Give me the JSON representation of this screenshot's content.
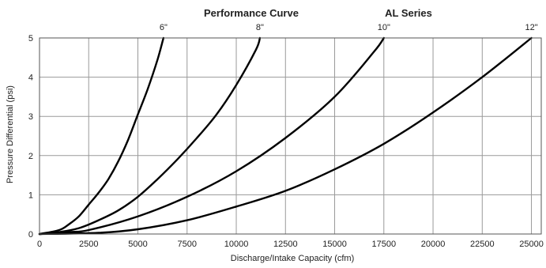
{
  "chart_data": {
    "type": "line",
    "title": "Performance Curve",
    "subtitle": "AL Series",
    "xlabel": "Discharge/Intake Capacity (cfm)",
    "ylabel": "Pressure Differential (psi)",
    "xlim": [
      0,
      25500
    ],
    "ylim": [
      0,
      5
    ],
    "x_ticks": [
      0,
      2500,
      5000,
      7500,
      10000,
      12500,
      15000,
      17500,
      20000,
      22500,
      25000
    ],
    "y_ticks": [
      0,
      1,
      2,
      3,
      4,
      5
    ],
    "grid": true,
    "series": [
      {
        "name": "6\"",
        "points": [
          [
            0,
            0
          ],
          [
            1000,
            0.1
          ],
          [
            1500,
            0.25
          ],
          [
            2000,
            0.45
          ],
          [
            2500,
            0.75
          ],
          [
            3000,
            1.05
          ],
          [
            3500,
            1.4
          ],
          [
            4000,
            1.85
          ],
          [
            4500,
            2.4
          ],
          [
            5000,
            3.05
          ],
          [
            5500,
            3.7
          ],
          [
            6000,
            4.45
          ],
          [
            6300,
            5.0
          ]
        ]
      },
      {
        "name": "8\"",
        "points": [
          [
            0,
            0
          ],
          [
            1000,
            0.05
          ],
          [
            2000,
            0.15
          ],
          [
            3000,
            0.35
          ],
          [
            4000,
            0.6
          ],
          [
            5000,
            0.95
          ],
          [
            6000,
            1.4
          ],
          [
            7000,
            1.9
          ],
          [
            8000,
            2.45
          ],
          [
            9000,
            3.05
          ],
          [
            10000,
            3.8
          ],
          [
            11000,
            4.7
          ],
          [
            11200,
            5.0
          ]
        ]
      },
      {
        "name": "10\"",
        "points": [
          [
            0,
            0
          ],
          [
            1500,
            0.05
          ],
          [
            2500,
            0.1
          ],
          [
            5000,
            0.45
          ],
          [
            7500,
            0.95
          ],
          [
            10000,
            1.6
          ],
          [
            12500,
            2.45
          ],
          [
            15000,
            3.5
          ],
          [
            17000,
            4.65
          ],
          [
            17500,
            5.0
          ]
        ]
      },
      {
        "name": "12\"",
        "points": [
          [
            0,
            0
          ],
          [
            3000,
            0.03
          ],
          [
            5000,
            0.12
          ],
          [
            7500,
            0.35
          ],
          [
            10000,
            0.7
          ],
          [
            12500,
            1.1
          ],
          [
            15000,
            1.65
          ],
          [
            17500,
            2.3
          ],
          [
            20000,
            3.1
          ],
          [
            22500,
            4.0
          ],
          [
            25000,
            5.0
          ]
        ]
      }
    ]
  }
}
